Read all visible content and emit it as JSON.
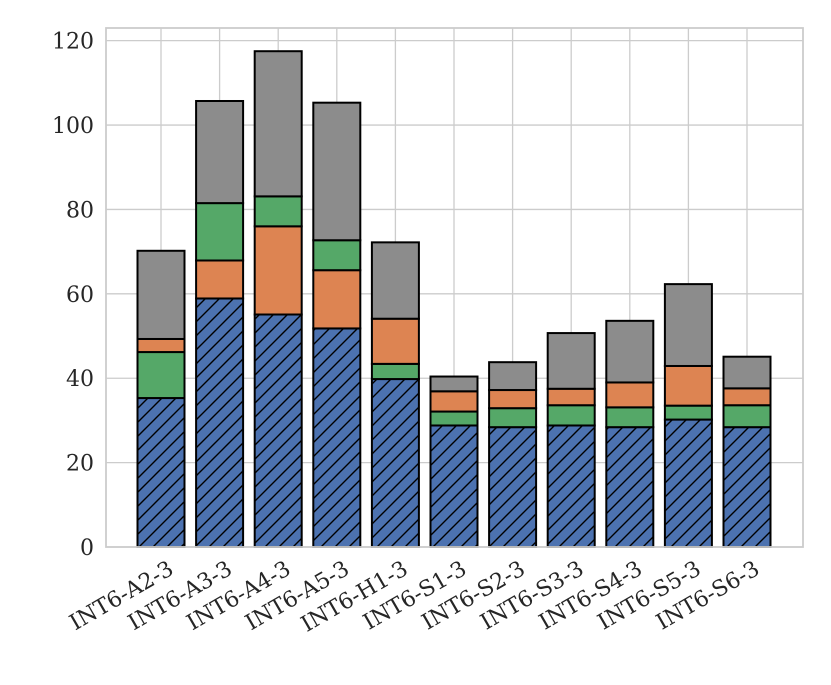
{
  "chart_data": {
    "type": "bar",
    "stacked": true,
    "categories": [
      "INT6-A2-3",
      "INT6-A3-3",
      "INT6-A4-3",
      "INT6-A5-3",
      "INT6-H1-3",
      "INT6-S1-3",
      "INT6-S2-3",
      "INT6-S3-3",
      "INT6-S4-3",
      "INT6-S5-3",
      "INT6-S6-3"
    ],
    "series": [
      {
        "color": "#4c72b0",
        "hatch": "diagonal",
        "values": [
          35.3,
          58.9,
          55.1,
          51.8,
          39.8,
          28.8,
          28.4,
          28.8,
          28.4,
          30.2,
          28.4
        ]
      },
      {
        "color": "#55a868",
        "values": [
          10.9,
          0,
          0,
          0,
          3.6,
          3.3,
          4.5,
          4.8,
          4.7,
          3.3,
          5.2
        ]
      },
      {
        "color": "#dd8452",
        "values": [
          3.1,
          9.0,
          20.9,
          13.8,
          10.7,
          4.8,
          4.3,
          3.9,
          5.9,
          9.4,
          4.0
        ]
      },
      {
        "color": "#55a868",
        "values": [
          0,
          13.6,
          7.1,
          7.1,
          0,
          0,
          0,
          0,
          0,
          0,
          0
        ]
      },
      {
        "color": "#8c8c8c",
        "values": [
          20.9,
          24.2,
          34.4,
          32.6,
          18.1,
          3.5,
          6.6,
          13.2,
          14.6,
          19.4,
          7.5
        ]
      }
    ],
    "ylim": [
      0,
      123
    ],
    "yticks": [
      0,
      20,
      40,
      60,
      80,
      100,
      120
    ],
    "grid": true,
    "xlabel": "",
    "ylabel": "",
    "title": ""
  }
}
